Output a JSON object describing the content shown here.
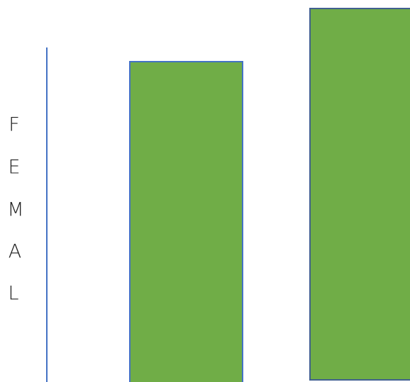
{
  "label": {
    "letters": [
      "F",
      "E",
      "M",
      "A",
      "L"
    ]
  }
}
